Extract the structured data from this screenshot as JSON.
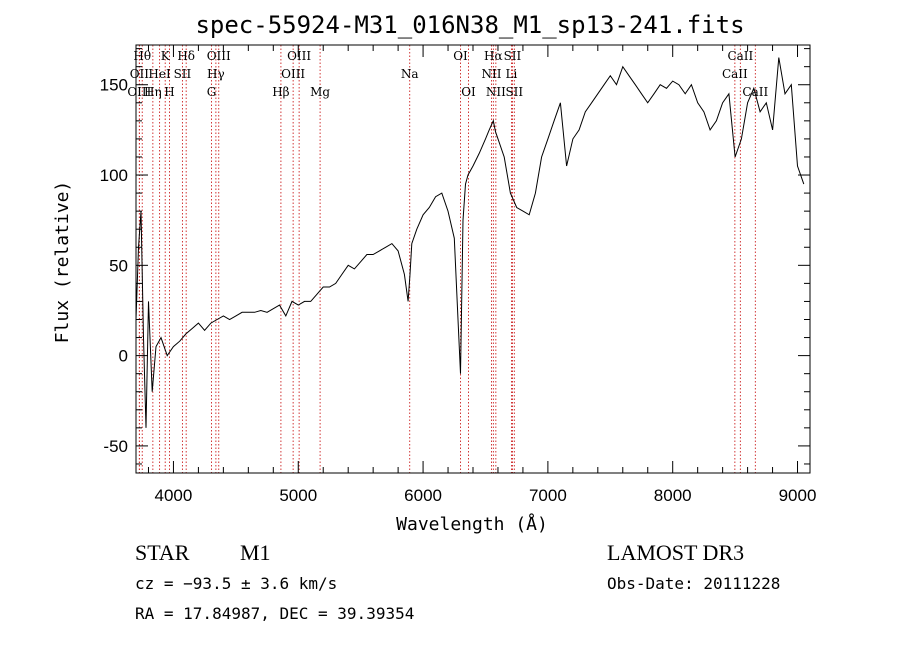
{
  "chart_data": {
    "type": "line",
    "title": "spec-55924-M31_016N38_M1_sp13-241.fits",
    "xlabel": "Wavelength (Å)",
    "ylabel": "Flux (relative)",
    "xlim": [
      3700,
      9100
    ],
    "ylim": [
      -65,
      172
    ],
    "xticks": [
      4000,
      5000,
      6000,
      7000,
      8000,
      9000
    ],
    "yticks": [
      -50,
      0,
      50,
      100,
      150
    ],
    "grid": false,
    "series": [
      {
        "name": "flux",
        "x": [
          3700,
          3720,
          3740,
          3760,
          3780,
          3800,
          3830,
          3860,
          3900,
          3950,
          4000,
          4050,
          4100,
          4150,
          4200,
          4250,
          4300,
          4350,
          4400,
          4450,
          4500,
          4550,
          4600,
          4650,
          4700,
          4750,
          4800,
          4850,
          4900,
          4950,
          5000,
          5050,
          5100,
          5150,
          5200,
          5250,
          5300,
          5350,
          5400,
          5450,
          5500,
          5550,
          5600,
          5650,
          5700,
          5750,
          5800,
          5850,
          5880,
          5895,
          5910,
          5950,
          6000,
          6050,
          6100,
          6150,
          6200,
          6250,
          6280,
          6300,
          6320,
          6340,
          6360,
          6400,
          6450,
          6500,
          6530,
          6563,
          6580,
          6600,
          6650,
          6700,
          6750,
          6800,
          6850,
          6900,
          6950,
          7000,
          7050,
          7100,
          7150,
          7200,
          7250,
          7300,
          7350,
          7400,
          7450,
          7500,
          7550,
          7600,
          7650,
          7700,
          7750,
          7800,
          7850,
          7900,
          7950,
          8000,
          8050,
          8100,
          8150,
          8200,
          8250,
          8300,
          8350,
          8400,
          8450,
          8500,
          8550,
          8600,
          8650,
          8700,
          8750,
          8800,
          8850,
          8900,
          8950,
          9000,
          9050
        ],
        "y": [
          20,
          60,
          80,
          10,
          -40,
          30,
          -20,
          5,
          10,
          0,
          5,
          8,
          12,
          15,
          18,
          14,
          18,
          20,
          22,
          20,
          22,
          24,
          24,
          24,
          25,
          24,
          26,
          28,
          22,
          30,
          28,
          30,
          30,
          34,
          38,
          38,
          40,
          45,
          50,
          48,
          52,
          56,
          56,
          58,
          60,
          62,
          58,
          45,
          30,
          45,
          62,
          70,
          78,
          82,
          88,
          90,
          80,
          65,
          20,
          -10,
          75,
          95,
          100,
          105,
          112,
          120,
          125,
          130,
          124,
          120,
          110,
          90,
          82,
          80,
          78,
          90,
          110,
          120,
          130,
          140,
          105,
          120,
          125,
          135,
          140,
          145,
          150,
          155,
          150,
          160,
          155,
          150,
          145,
          140,
          145,
          150,
          148,
          152,
          150,
          145,
          150,
          140,
          135,
          125,
          130,
          140,
          145,
          110,
          120,
          140,
          148,
          135,
          140,
          125,
          165,
          145,
          150,
          105,
          95
        ]
      }
    ],
    "lines": [
      {
        "label": "Hθ",
        "x": 3750,
        "row": 0
      },
      {
        "label": "K",
        "x": 3934,
        "row": 0
      },
      {
        "label": "Hδ",
        "x": 4102,
        "row": 0
      },
      {
        "label": "OIII",
        "x": 4363,
        "row": 0
      },
      {
        "label": "OIII",
        "x": 5007,
        "row": 0
      },
      {
        "label": "OI",
        "x": 6300,
        "row": 0
      },
      {
        "label": "Hα",
        "x": 6563,
        "row": 0
      },
      {
        "label": "SII",
        "x": 6716,
        "row": 0
      },
      {
        "label": "CaII",
        "x": 8542,
        "row": 0
      },
      {
        "label": "OII",
        "x": 3727,
        "row": 1
      },
      {
        "label": "HeI",
        "x": 3889,
        "row": 1
      },
      {
        "label": "SII",
        "x": 4072,
        "row": 1
      },
      {
        "label": "Hγ",
        "x": 4340,
        "row": 1
      },
      {
        "label": "OIII",
        "x": 4959,
        "row": 1
      },
      {
        "label": "Na",
        "x": 5893,
        "row": 1
      },
      {
        "label": "NII",
        "x": 6548,
        "row": 1
      },
      {
        "label": "Li",
        "x": 6708,
        "row": 1
      },
      {
        "label": "CaII",
        "x": 8498,
        "row": 1
      },
      {
        "label": "OIII",
        "x": 3727,
        "row": 2
      },
      {
        "label": "Hη",
        "x": 3835,
        "row": 2
      },
      {
        "label": "H",
        "x": 3968,
        "row": 2
      },
      {
        "label": "G",
        "x": 4305,
        "row": 2
      },
      {
        "label": "Hβ",
        "x": 4861,
        "row": 2
      },
      {
        "label": "Mg",
        "x": 5175,
        "row": 2
      },
      {
        "label": "OI",
        "x": 6364,
        "row": 2
      },
      {
        "label": "NII",
        "x": 6583,
        "row": 2
      },
      {
        "label": "SII",
        "x": 6731,
        "row": 2
      },
      {
        "label": "CaII",
        "x": 8662,
        "row": 2
      }
    ]
  },
  "info": {
    "object_type": "STAR",
    "subclass": "M1",
    "survey": "LAMOST DR3",
    "cz": "cz = −93.5 ± 3.6 km/s",
    "obs_date": "Obs-Date: 20111228",
    "radec": "RA =  17.84987, DEC =  39.39354"
  }
}
